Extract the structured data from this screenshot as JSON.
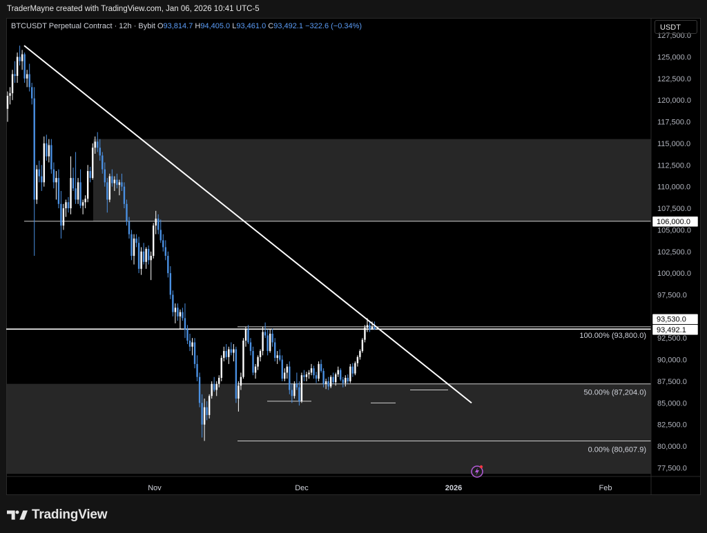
{
  "header": {
    "attribution": "TraderMayne created with TradingView.com, Jan 06, 2026 10:41 UTC-5"
  },
  "legend": {
    "symbol": "BTCUSDT Perpetual Contract · 12h · Bybit",
    "o_label": "O",
    "o_value": "93,814.7",
    "h_label": "H",
    "h_value": "94,405.0",
    "l_label": "L",
    "l_value": "93,461.0",
    "c_label": "C",
    "c_value": "93,492.1",
    "change": "−322.6 (−0.34%)"
  },
  "currency_label": "USDT",
  "brand": {
    "name": "TradingView",
    "icon": "tradingview-logo-icon"
  },
  "colors": {
    "background": "#000000",
    "candle_up": "#ffffff",
    "candle_down": "#4a90e2",
    "zone": "#2e2e2e",
    "legend_value": "#5b9cf6"
  },
  "chart_data": {
    "type": "candlestick",
    "symbol": "BTCUSDT",
    "interval": "12h",
    "ylim": [
      76500,
      129500
    ],
    "y_ticks": [
      "77,500.0",
      "80,000.0",
      "82,500.0",
      "85,000.0",
      "87,500.0",
      "90,000.0",
      "92,500.0",
      "95,000.0",
      "97,500.0",
      "100,000.0",
      "102,500.0",
      "105,000.0",
      "107,500.0",
      "110,000.0",
      "112,500.0",
      "115,000.0",
      "117,500.0",
      "120,000.0",
      "122,500.0",
      "125,000.0",
      "127,500.0"
    ],
    "x_ticks": [
      "Nov",
      "Dec",
      "2026",
      "Feb"
    ],
    "price_labels": [
      {
        "text": "106,000.0",
        "value": 106000
      },
      {
        "text": "93,530.0",
        "value": 93530
      },
      {
        "text": "93,492.1",
        "value": 93492.1
      }
    ],
    "horizontal_levels": [
      106000,
      93530,
      80607.9
    ],
    "fib_levels": [
      {
        "label": "100.00% (93,800.0)",
        "value": 93800
      },
      {
        "label": "50.00% (87,204.0)",
        "value": 87204
      },
      {
        "label": "0.00% (80,607.9)",
        "value": 80607.9
      }
    ],
    "zones": [
      {
        "top": 115500,
        "bottom": 106000
      },
      {
        "top": 87204,
        "bottom": 76800
      }
    ],
    "trendline": {
      "start": [
        "Oct 06",
        126300
      ],
      "end": [
        "Jan 10",
        85000
      ]
    },
    "ohlc_12h_from_oct_02_2025": [
      [
        119000,
        121000,
        117500,
        120500
      ],
      [
        120500,
        121500,
        119500,
        120800
      ],
      [
        120800,
        123500,
        120000,
        123000
      ],
      [
        123000,
        124500,
        122000,
        122800
      ],
      [
        122800,
        125500,
        122000,
        125000
      ],
      [
        125000,
        126300,
        124000,
        124500
      ],
      [
        124500,
        125800,
        123500,
        125300
      ],
      [
        125300,
        125500,
        122000,
        122500
      ],
      [
        122500,
        123500,
        121500,
        123000
      ],
      [
        123000,
        124200,
        121000,
        121500
      ],
      [
        121500,
        122000,
        119500,
        120200
      ],
      [
        120200,
        121500,
        102000,
        108500
      ],
      [
        108500,
        112500,
        108000,
        112000
      ],
      [
        112000,
        113000,
        110500,
        111200
      ],
      [
        111200,
        112500,
        109500,
        110500
      ],
      [
        110500,
        115800,
        110000,
        115000
      ],
      [
        115000,
        116000,
        113000,
        113500
      ],
      [
        113500,
        115500,
        112800,
        114800
      ],
      [
        114800,
        115500,
        111500,
        112000
      ],
      [
        112000,
        112800,
        109800,
        110500
      ],
      [
        110500,
        111800,
        108500,
        111000
      ],
      [
        111000,
        112000,
        107500,
        108000
      ],
      [
        108000,
        109500,
        104000,
        105500
      ],
      [
        105500,
        108000,
        105000,
        107500
      ],
      [
        107500,
        108500,
        106500,
        108200
      ],
      [
        108200,
        108800,
        107000,
        107500
      ],
      [
        107500,
        113500,
        106800,
        111000
      ],
      [
        111000,
        112200,
        109500,
        109800
      ],
      [
        109800,
        114000,
        108000,
        108500
      ],
      [
        108500,
        111000,
        108000,
        110500
      ],
      [
        110500,
        112000,
        107500,
        107800
      ],
      [
        107800,
        108500,
        106800,
        108200
      ],
      [
        108200,
        109000,
        107500,
        108600
      ],
      [
        108600,
        112500,
        108200,
        111800
      ],
      [
        111800,
        112300,
        110500,
        111000
      ],
      [
        111000,
        115000,
        110800,
        114500
      ],
      [
        114500,
        115800,
        113800,
        115200
      ],
      [
        115200,
        116300,
        114000,
        114500
      ],
      [
        114500,
        115500,
        113000,
        113600
      ],
      [
        113600,
        114000,
        111500,
        112000
      ],
      [
        112000,
        112800,
        110000,
        110500
      ],
      [
        110500,
        111000,
        107000,
        108500
      ],
      [
        108500,
        111500,
        108200,
        111200
      ],
      [
        111200,
        112000,
        110000,
        110400
      ],
      [
        110400,
        111200,
        109500,
        110800
      ],
      [
        110800,
        111500,
        109800,
        110200
      ],
      [
        110200,
        110800,
        109000,
        110500
      ],
      [
        110500,
        111500,
        109500,
        110000
      ],
      [
        110000,
        110500,
        107500,
        108000
      ],
      [
        108000,
        108500,
        105500,
        106000
      ],
      [
        106000,
        106500,
        104000,
        104500
      ],
      [
        104500,
        105000,
        101500,
        102000
      ],
      [
        102000,
        104500,
        101000,
        104000
      ],
      [
        104000,
        104500,
        103000,
        103500
      ],
      [
        103500,
        104200,
        100000,
        100500
      ],
      [
        100500,
        103000,
        99800,
        102500
      ],
      [
        102500,
        103500,
        101000,
        101300
      ],
      [
        101300,
        103000,
        100500,
        102800
      ],
      [
        102800,
        103200,
        101000,
        101500
      ],
      [
        101500,
        102500,
        99200,
        102000
      ],
      [
        102000,
        105800,
        101700,
        105500
      ],
      [
        105500,
        107200,
        104500,
        106300
      ],
      [
        106300,
        106800,
        104500,
        105000
      ],
      [
        105000,
        106200,
        103500,
        103800
      ],
      [
        103800,
        104500,
        102500,
        103000
      ],
      [
        103000,
        103800,
        101500,
        102000
      ],
      [
        102000,
        102500,
        99500,
        100000
      ],
      [
        100000,
        100800,
        97000,
        97500
      ],
      [
        97500,
        98000,
        95000,
        95500
      ],
      [
        95500,
        96500,
        94200,
        96000
      ],
      [
        96000,
        96500,
        94500,
        95000
      ],
      [
        95000,
        95800,
        93500,
        95500
      ],
      [
        95500,
        96000,
        94500,
        94800
      ],
      [
        94800,
        96500,
        92500,
        93500
      ],
      [
        93500,
        94000,
        91800,
        92200
      ],
      [
        92200,
        93000,
        91000,
        91500
      ],
      [
        91500,
        92500,
        90500,
        92000
      ],
      [
        92000,
        92500,
        89000,
        89500
      ],
      [
        89500,
        90500,
        87500,
        88000
      ],
      [
        88000,
        88500,
        84500,
        85000
      ],
      [
        85000,
        86000,
        81000,
        82500
      ],
      [
        82500,
        85500,
        80607.9,
        84500
      ],
      [
        84500,
        85200,
        83000,
        83600
      ],
      [
        83600,
        86000,
        83200,
        85800
      ],
      [
        85800,
        87500,
        85500,
        87200
      ],
      [
        87200,
        88000,
        86300,
        86500
      ],
      [
        86500,
        87500,
        85800,
        87200
      ],
      [
        87200,
        88200,
        86800,
        87900
      ],
      [
        87900,
        90500,
        87500,
        90200
      ],
      [
        90200,
        91500,
        89800,
        91000
      ],
      [
        91000,
        91800,
        90000,
        90300
      ],
      [
        90300,
        91500,
        89500,
        91200
      ],
      [
        91200,
        92000,
        90500,
        90800
      ],
      [
        90800,
        91800,
        89800,
        91200
      ],
      [
        91200,
        91500,
        85000,
        85500
      ],
      [
        85500,
        87500,
        84000,
        87000
      ],
      [
        87000,
        88500,
        86500,
        88000
      ],
      [
        88000,
        92500,
        87800,
        92200
      ],
      [
        92200,
        93800,
        91500,
        93500
      ],
      [
        93500,
        94000,
        91800,
        92000
      ],
      [
        92000,
        92500,
        90500,
        91000
      ],
      [
        91000,
        91500,
        88200,
        88500
      ],
      [
        88500,
        89500,
        87800,
        89200
      ],
      [
        89200,
        90500,
        88800,
        90300
      ],
      [
        90300,
        91200,
        89800,
        91000
      ],
      [
        91000,
        93800,
        90500,
        93200
      ],
      [
        93200,
        94300,
        92500,
        92800
      ],
      [
        92800,
        93500,
        90500,
        91000
      ],
      [
        91000,
        93500,
        90800,
        93000
      ],
      [
        93000,
        93600,
        91500,
        92000
      ],
      [
        92000,
        92500,
        89800,
        90200
      ],
      [
        90200,
        91000,
        89500,
        90500
      ],
      [
        90500,
        91200,
        89800,
        90000
      ],
      [
        90000,
        90500,
        87500,
        87800
      ],
      [
        87800,
        89000,
        87500,
        88500
      ],
      [
        88500,
        89500,
        87800,
        89200
      ],
      [
        89200,
        89800,
        86000,
        86500
      ],
      [
        86500,
        87200,
        85000,
        85800
      ],
      [
        85800,
        87500,
        85500,
        87200
      ],
      [
        87200,
        88500,
        86500,
        86800
      ],
      [
        86800,
        87500,
        84700,
        85200
      ],
      [
        85200,
        88500,
        85000,
        88200
      ],
      [
        88200,
        88800,
        87500,
        88000
      ],
      [
        88000,
        88600,
        87500,
        88300
      ],
      [
        88300,
        88800,
        87800,
        88500
      ],
      [
        88500,
        89500,
        88200,
        89000
      ],
      [
        89000,
        89300,
        87800,
        88200
      ],
      [
        88200,
        88600,
        87300,
        87800
      ],
      [
        87800,
        89800,
        87500,
        89500
      ],
      [
        89500,
        90000,
        88500,
        88700
      ],
      [
        88700,
        89000,
        86800,
        87200
      ],
      [
        87200,
        87800,
        86600,
        87500
      ],
      [
        87500,
        88000,
        86500,
        86900
      ],
      [
        86900,
        88200,
        86700,
        88000
      ],
      [
        88000,
        88500,
        87200,
        87400
      ],
      [
        87400,
        88500,
        87000,
        88300
      ],
      [
        88300,
        89200,
        88000,
        88800
      ],
      [
        88800,
        89000,
        87500,
        87700
      ],
      [
        87700,
        88000,
        86800,
        87300
      ],
      [
        87300,
        88200,
        86900,
        87900
      ],
      [
        87900,
        88300,
        87200,
        87500
      ],
      [
        87500,
        89500,
        87300,
        89200
      ],
      [
        89200,
        89600,
        88000,
        88400
      ],
      [
        88400,
        89800,
        88200,
        89600
      ],
      [
        89600,
        90500,
        89200,
        90300
      ],
      [
        90300,
        91200,
        90000,
        91000
      ],
      [
        91000,
        92500,
        90800,
        92300
      ],
      [
        92300,
        94000,
        92000,
        93700
      ],
      [
        93700,
        94800,
        93200,
        94000
      ],
      [
        94000,
        94400,
        93200,
        93500
      ],
      [
        93500,
        94405,
        93461,
        93814.7
      ],
      [
        93814.7,
        94405,
        93461,
        93492.1
      ]
    ]
  }
}
